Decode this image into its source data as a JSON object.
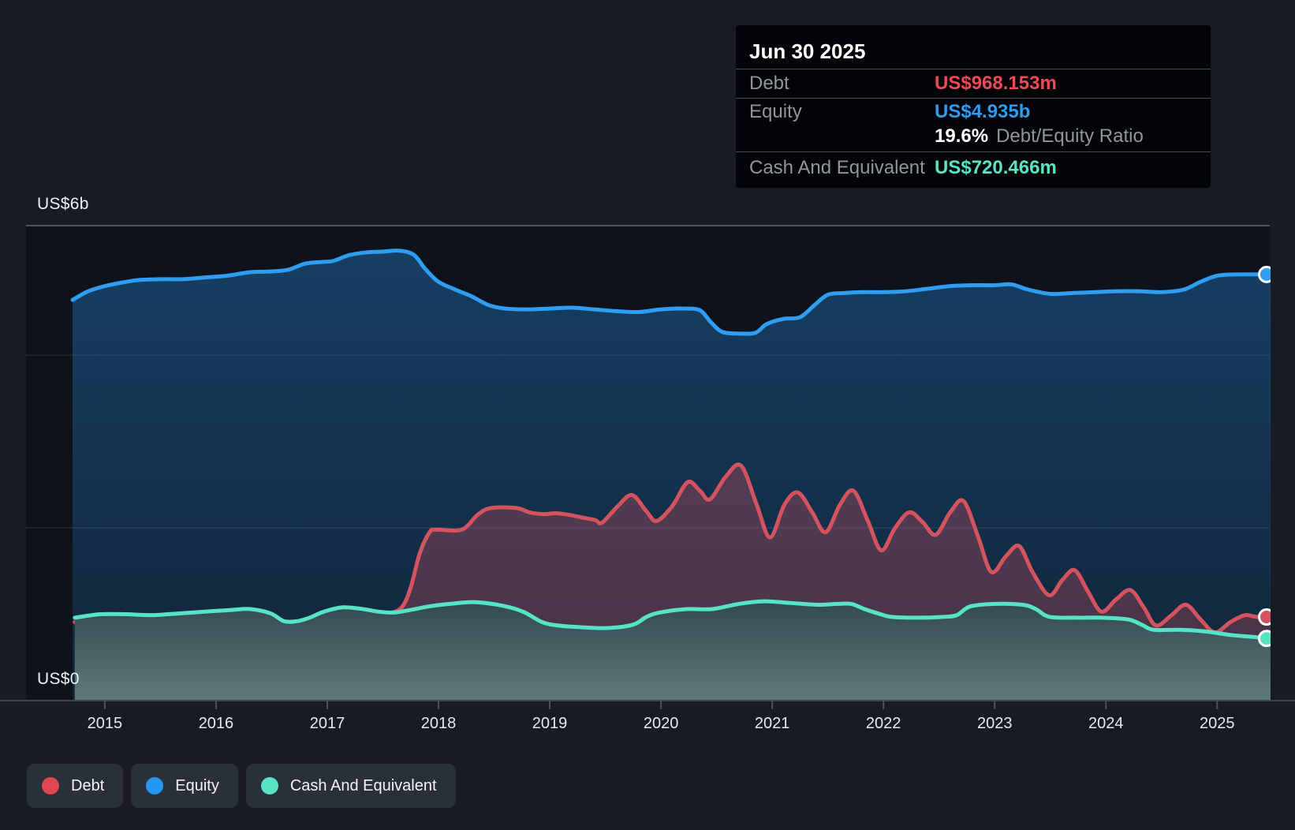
{
  "tooltip": {
    "date": "Jun 30 2025",
    "debt_label": "Debt",
    "debt_value": "US$968.153m",
    "equity_label": "Equity",
    "equity_value": "US$4.935b",
    "ratio_value": "19.6%",
    "ratio_text": "Debt/Equity Ratio",
    "cash_label": "Cash And Equivalent",
    "cash_value": "US$720.466m",
    "debt_color": "#ee4956",
    "equity_color": "#2d9cf3",
    "cash_color": "#57e5c5"
  },
  "legend": {
    "items": [
      {
        "label": "Debt",
        "color": "#df4850"
      },
      {
        "label": "Equity",
        "color": "#2196f3"
      },
      {
        "label": "Cash And Equivalent",
        "color": "#57e4c4"
      }
    ]
  },
  "chart_data": {
    "type": "area",
    "x_domain": [
      2014.71,
      2025.48
    ],
    "x_ticks": [
      "2015",
      "2016",
      "2017",
      "2018",
      "2019",
      "2020",
      "2021",
      "2022",
      "2023",
      "2024",
      "2025"
    ],
    "y_axis": {
      "top_label": "US$6b",
      "bottom_label": "US$0",
      "max_b": 5.5,
      "gridlines_b": [
        2,
        4
      ],
      "unit": "US$ billions"
    },
    "series": [
      {
        "key": "equity",
        "name": "Equity",
        "color": "#2e9df2",
        "end_value": "US$4.935b",
        "points": [
          [
            2014.71,
            4.64
          ],
          [
            2014.85,
            4.74
          ],
          [
            2015.0,
            4.8
          ],
          [
            2015.15,
            4.84
          ],
          [
            2015.3,
            4.87
          ],
          [
            2015.5,
            4.88
          ],
          [
            2015.7,
            4.88
          ],
          [
            2015.9,
            4.9
          ],
          [
            2016.1,
            4.92
          ],
          [
            2016.3,
            4.96
          ],
          [
            2016.5,
            4.97
          ],
          [
            2016.65,
            4.99
          ],
          [
            2016.8,
            5.06
          ],
          [
            2016.95,
            5.08
          ],
          [
            2017.05,
            5.09
          ],
          [
            2017.2,
            5.16
          ],
          [
            2017.35,
            5.19
          ],
          [
            2017.5,
            5.2
          ],
          [
            2017.65,
            5.21
          ],
          [
            2017.78,
            5.16
          ],
          [
            2017.88,
            5.0
          ],
          [
            2018.0,
            4.85
          ],
          [
            2018.15,
            4.76
          ],
          [
            2018.3,
            4.68
          ],
          [
            2018.45,
            4.58
          ],
          [
            2018.6,
            4.54
          ],
          [
            2018.8,
            4.53
          ],
          [
            2019.0,
            4.54
          ],
          [
            2019.2,
            4.55
          ],
          [
            2019.4,
            4.53
          ],
          [
            2019.6,
            4.51
          ],
          [
            2019.8,
            4.5
          ],
          [
            2020.0,
            4.53
          ],
          [
            2020.2,
            4.54
          ],
          [
            2020.35,
            4.52
          ],
          [
            2020.45,
            4.38
          ],
          [
            2020.55,
            4.27
          ],
          [
            2020.7,
            4.25
          ],
          [
            2020.85,
            4.26
          ],
          [
            2020.95,
            4.36
          ],
          [
            2021.1,
            4.42
          ],
          [
            2021.25,
            4.44
          ],
          [
            2021.38,
            4.58
          ],
          [
            2021.5,
            4.7
          ],
          [
            2021.65,
            4.72
          ],
          [
            2021.8,
            4.73
          ],
          [
            2022.0,
            4.73
          ],
          [
            2022.2,
            4.74
          ],
          [
            2022.4,
            4.77
          ],
          [
            2022.6,
            4.8
          ],
          [
            2022.8,
            4.81
          ],
          [
            2023.0,
            4.81
          ],
          [
            2023.15,
            4.82
          ],
          [
            2023.3,
            4.76
          ],
          [
            2023.5,
            4.71
          ],
          [
            2023.7,
            4.72
          ],
          [
            2023.9,
            4.73
          ],
          [
            2024.1,
            4.74
          ],
          [
            2024.3,
            4.74
          ],
          [
            2024.5,
            4.73
          ],
          [
            2024.7,
            4.76
          ],
          [
            2024.85,
            4.85
          ],
          [
            2025.0,
            4.92
          ],
          [
            2025.15,
            4.935
          ],
          [
            2025.48,
            4.935
          ]
        ]
      },
      {
        "key": "debt",
        "name": "Debt",
        "color": "#d5535f",
        "end_value": "US$968.153m",
        "points": [
          [
            2014.73,
            0.91
          ],
          [
            2014.96,
            0.94
          ],
          [
            2015.19,
            0.94
          ],
          [
            2015.43,
            0.91
          ],
          [
            2015.67,
            0.89
          ],
          [
            2015.9,
            0.88
          ],
          [
            2016.14,
            0.88
          ],
          [
            2016.38,
            0.88
          ],
          [
            2016.61,
            0.9
          ],
          [
            2016.84,
            0.92
          ],
          [
            2016.97,
            0.99
          ],
          [
            2017.09,
            1.03
          ],
          [
            2017.2,
            1.04
          ],
          [
            2017.32,
            1.03
          ],
          [
            2017.44,
            1.01
          ],
          [
            2017.55,
            1.01
          ],
          [
            2017.67,
            1.08
          ],
          [
            2017.75,
            1.31
          ],
          [
            2017.83,
            1.7
          ],
          [
            2017.92,
            1.95
          ],
          [
            2017.98,
            1.98
          ],
          [
            2018.21,
            1.98
          ],
          [
            2018.35,
            2.15
          ],
          [
            2018.47,
            2.23
          ],
          [
            2018.7,
            2.23
          ],
          [
            2018.82,
            2.18
          ],
          [
            2018.95,
            2.16
          ],
          [
            2019.06,
            2.17
          ],
          [
            2019.18,
            2.15
          ],
          [
            2019.29,
            2.12
          ],
          [
            2019.41,
            2.09
          ],
          [
            2019.47,
            2.06
          ],
          [
            2019.61,
            2.25
          ],
          [
            2019.74,
            2.38
          ],
          [
            2019.87,
            2.19
          ],
          [
            2019.96,
            2.08
          ],
          [
            2020.1,
            2.25
          ],
          [
            2020.24,
            2.53
          ],
          [
            2020.35,
            2.43
          ],
          [
            2020.44,
            2.33
          ],
          [
            2020.58,
            2.59
          ],
          [
            2020.72,
            2.72
          ],
          [
            2020.86,
            2.27
          ],
          [
            2020.98,
            1.89
          ],
          [
            2021.11,
            2.27
          ],
          [
            2021.23,
            2.41
          ],
          [
            2021.36,
            2.18
          ],
          [
            2021.48,
            1.95
          ],
          [
            2021.61,
            2.27
          ],
          [
            2021.73,
            2.43
          ],
          [
            2021.86,
            2.08
          ],
          [
            2021.98,
            1.74
          ],
          [
            2022.1,
            1.99
          ],
          [
            2022.23,
            2.18
          ],
          [
            2022.35,
            2.07
          ],
          [
            2022.47,
            1.92
          ],
          [
            2022.6,
            2.18
          ],
          [
            2022.72,
            2.31
          ],
          [
            2022.85,
            1.9
          ],
          [
            2022.97,
            1.49
          ],
          [
            2023.1,
            1.67
          ],
          [
            2023.22,
            1.79
          ],
          [
            2023.34,
            1.49
          ],
          [
            2023.49,
            1.22
          ],
          [
            2023.61,
            1.4
          ],
          [
            2023.72,
            1.51
          ],
          [
            2023.84,
            1.26
          ],
          [
            2023.96,
            1.03
          ],
          [
            2024.09,
            1.17
          ],
          [
            2024.22,
            1.28
          ],
          [
            2024.34,
            1.08
          ],
          [
            2024.45,
            0.87
          ],
          [
            2024.59,
            0.99
          ],
          [
            2024.72,
            1.11
          ],
          [
            2024.85,
            0.94
          ],
          [
            2024.98,
            0.79
          ],
          [
            2025.12,
            0.91
          ],
          [
            2025.25,
            0.99
          ],
          [
            2025.35,
            0.97
          ],
          [
            2025.48,
            0.968
          ]
        ]
      },
      {
        "key": "cash",
        "name": "Cash And Equivalent",
        "color": "#57e4c4",
        "end_value": "US$720.466m",
        "points": [
          [
            2014.73,
            0.96
          ],
          [
            2014.96,
            1.0
          ],
          [
            2015.19,
            1.0
          ],
          [
            2015.43,
            0.99
          ],
          [
            2015.67,
            1.01
          ],
          [
            2015.9,
            1.03
          ],
          [
            2016.14,
            1.05
          ],
          [
            2016.31,
            1.06
          ],
          [
            2016.49,
            1.01
          ],
          [
            2016.61,
            0.92
          ],
          [
            2016.73,
            0.92
          ],
          [
            2016.84,
            0.96
          ],
          [
            2016.97,
            1.03
          ],
          [
            2017.14,
            1.08
          ],
          [
            2017.32,
            1.06
          ],
          [
            2017.46,
            1.03
          ],
          [
            2017.6,
            1.02
          ],
          [
            2017.75,
            1.05
          ],
          [
            2017.91,
            1.09
          ],
          [
            2018.1,
            1.12
          ],
          [
            2018.33,
            1.14
          ],
          [
            2018.57,
            1.1
          ],
          [
            2018.76,
            1.03
          ],
          [
            2018.93,
            0.91
          ],
          [
            2019.07,
            0.87
          ],
          [
            2019.28,
            0.85
          ],
          [
            2019.52,
            0.84
          ],
          [
            2019.75,
            0.88
          ],
          [
            2019.87,
            0.97
          ],
          [
            2019.99,
            1.02
          ],
          [
            2020.23,
            1.06
          ],
          [
            2020.46,
            1.06
          ],
          [
            2020.7,
            1.12
          ],
          [
            2020.93,
            1.15
          ],
          [
            2021.17,
            1.13
          ],
          [
            2021.41,
            1.11
          ],
          [
            2021.59,
            1.12
          ],
          [
            2021.71,
            1.12
          ],
          [
            2021.83,
            1.06
          ],
          [
            2021.95,
            1.01
          ],
          [
            2022.07,
            0.97
          ],
          [
            2022.3,
            0.96
          ],
          [
            2022.54,
            0.97
          ],
          [
            2022.66,
            0.99
          ],
          [
            2022.78,
            1.09
          ],
          [
            2023.01,
            1.12
          ],
          [
            2023.25,
            1.11
          ],
          [
            2023.37,
            1.06
          ],
          [
            2023.49,
            0.97
          ],
          [
            2023.72,
            0.96
          ],
          [
            2023.96,
            0.96
          ],
          [
            2024.2,
            0.94
          ],
          [
            2024.32,
            0.88
          ],
          [
            2024.43,
            0.82
          ],
          [
            2024.67,
            0.82
          ],
          [
            2024.9,
            0.8
          ],
          [
            2025.12,
            0.76
          ],
          [
            2025.3,
            0.74
          ],
          [
            2025.48,
            0.72
          ]
        ]
      }
    ]
  }
}
